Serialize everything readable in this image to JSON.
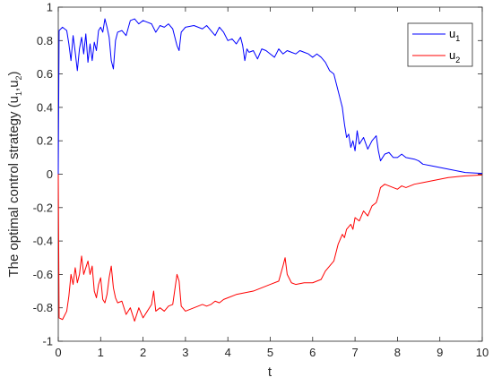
{
  "chart_data": {
    "type": "line",
    "xlabel": "t",
    "ylabel": {
      "text": "The optimal control strategy (u",
      "sub1": "1",
      "mid": ",u",
      "sub2": "2",
      "end": ")"
    },
    "xlim": [
      0,
      10
    ],
    "ylim": [
      -1,
      1
    ],
    "xticks": [
      "0",
      "1",
      "2",
      "3",
      "4",
      "5",
      "6",
      "7",
      "8",
      "9",
      "10"
    ],
    "yticks": [
      "-1",
      "-0.8",
      "-0.6",
      "-0.4",
      "-0.2",
      "0",
      "0.2",
      "0.4",
      "0.6",
      "0.8",
      "1"
    ],
    "grid": false,
    "legend_position": "top-right",
    "series": [
      {
        "name": "u",
        "sub": "1",
        "color": "#0000ff",
        "points": [
          [
            0,
            0
          ],
          [
            0.02,
            0.86
          ],
          [
            0.1,
            0.88
          ],
          [
            0.2,
            0.86
          ],
          [
            0.25,
            0.78
          ],
          [
            0.3,
            0.68
          ],
          [
            0.35,
            0.83
          ],
          [
            0.4,
            0.73
          ],
          [
            0.45,
            0.62
          ],
          [
            0.5,
            0.75
          ],
          [
            0.55,
            0.82
          ],
          [
            0.6,
            0.72
          ],
          [
            0.65,
            0.84
          ],
          [
            0.7,
            0.67
          ],
          [
            0.75,
            0.78
          ],
          [
            0.8,
            0.68
          ],
          [
            0.85,
            0.79
          ],
          [
            0.9,
            0.74
          ],
          [
            0.95,
            0.86
          ],
          [
            1.0,
            0.88
          ],
          [
            1.05,
            0.85
          ],
          [
            1.1,
            0.93
          ],
          [
            1.15,
            0.88
          ],
          [
            1.2,
            0.82
          ],
          [
            1.25,
            0.68
          ],
          [
            1.3,
            0.63
          ],
          [
            1.35,
            0.8
          ],
          [
            1.4,
            0.85
          ],
          [
            1.5,
            0.86
          ],
          [
            1.6,
            0.83
          ],
          [
            1.7,
            0.92
          ],
          [
            1.8,
            0.93
          ],
          [
            1.9,
            0.9
          ],
          [
            2.0,
            0.92
          ],
          [
            2.1,
            0.91
          ],
          [
            2.2,
            0.9
          ],
          [
            2.3,
            0.85
          ],
          [
            2.4,
            0.89
          ],
          [
            2.5,
            0.88
          ],
          [
            2.6,
            0.9
          ],
          [
            2.7,
            0.87
          ],
          [
            2.8,
            0.77
          ],
          [
            2.85,
            0.74
          ],
          [
            2.9,
            0.85
          ],
          [
            3.0,
            0.88
          ],
          [
            3.2,
            0.89
          ],
          [
            3.4,
            0.87
          ],
          [
            3.5,
            0.89
          ],
          [
            3.6,
            0.86
          ],
          [
            3.7,
            0.83
          ],
          [
            3.8,
            0.88
          ],
          [
            3.9,
            0.85
          ],
          [
            4.0,
            0.8
          ],
          [
            4.1,
            0.81
          ],
          [
            4.2,
            0.78
          ],
          [
            4.3,
            0.82
          ],
          [
            4.35,
            0.77
          ],
          [
            4.4,
            0.68
          ],
          [
            4.45,
            0.75
          ],
          [
            4.5,
            0.73
          ],
          [
            4.6,
            0.74
          ],
          [
            4.7,
            0.69
          ],
          [
            4.8,
            0.75
          ],
          [
            4.9,
            0.74
          ],
          [
            5.0,
            0.72
          ],
          [
            5.1,
            0.7
          ],
          [
            5.2,
            0.75
          ],
          [
            5.3,
            0.72
          ],
          [
            5.4,
            0.74
          ],
          [
            5.5,
            0.73
          ],
          [
            5.6,
            0.72
          ],
          [
            5.7,
            0.74
          ],
          [
            5.8,
            0.73
          ],
          [
            5.9,
            0.72
          ],
          [
            6.0,
            0.7
          ],
          [
            6.1,
            0.72
          ],
          [
            6.2,
            0.7
          ],
          [
            6.3,
            0.67
          ],
          [
            6.4,
            0.62
          ],
          [
            6.5,
            0.6
          ],
          [
            6.6,
            0.5
          ],
          [
            6.7,
            0.4
          ],
          [
            6.75,
            0.3
          ],
          [
            6.8,
            0.22
          ],
          [
            6.85,
            0.24
          ],
          [
            6.9,
            0.16
          ],
          [
            6.95,
            0.2
          ],
          [
            7.0,
            0.14
          ],
          [
            7.05,
            0.26
          ],
          [
            7.1,
            0.18
          ],
          [
            7.2,
            0.22
          ],
          [
            7.3,
            0.15
          ],
          [
            7.4,
            0.2
          ],
          [
            7.5,
            0.23
          ],
          [
            7.55,
            0.14
          ],
          [
            7.6,
            0.08
          ],
          [
            7.7,
            0.12
          ],
          [
            7.8,
            0.13
          ],
          [
            7.9,
            0.1
          ],
          [
            8.0,
            0.1
          ],
          [
            8.1,
            0.12
          ],
          [
            8.2,
            0.1
          ],
          [
            8.4,
            0.09
          ],
          [
            8.5,
            0.08
          ],
          [
            8.6,
            0.06
          ],
          [
            8.8,
            0.05
          ],
          [
            9.0,
            0.04
          ],
          [
            9.2,
            0.03
          ],
          [
            9.4,
            0.02
          ],
          [
            9.6,
            0.01
          ],
          [
            10,
            0.005
          ]
        ]
      },
      {
        "name": "u",
        "sub": "2",
        "color": "#ff0000",
        "points": [
          [
            0,
            0
          ],
          [
            0.02,
            -0.86
          ],
          [
            0.1,
            -0.87
          ],
          [
            0.2,
            -0.82
          ],
          [
            0.25,
            -0.73
          ],
          [
            0.3,
            -0.6
          ],
          [
            0.35,
            -0.66
          ],
          [
            0.4,
            -0.56
          ],
          [
            0.45,
            -0.65
          ],
          [
            0.5,
            -0.6
          ],
          [
            0.55,
            -0.49
          ],
          [
            0.6,
            -0.6
          ],
          [
            0.65,
            -0.56
          ],
          [
            0.7,
            -0.52
          ],
          [
            0.75,
            -0.6
          ],
          [
            0.8,
            -0.55
          ],
          [
            0.85,
            -0.7
          ],
          [
            0.9,
            -0.74
          ],
          [
            0.95,
            -0.66
          ],
          [
            1.0,
            -0.62
          ],
          [
            1.05,
            -0.75
          ],
          [
            1.1,
            -0.77
          ],
          [
            1.15,
            -0.72
          ],
          [
            1.2,
            -0.62
          ],
          [
            1.25,
            -0.55
          ],
          [
            1.3,
            -0.68
          ],
          [
            1.35,
            -0.74
          ],
          [
            1.4,
            -0.77
          ],
          [
            1.5,
            -0.76
          ],
          [
            1.6,
            -0.84
          ],
          [
            1.7,
            -0.8
          ],
          [
            1.8,
            -0.88
          ],
          [
            1.9,
            -0.8
          ],
          [
            2.0,
            -0.86
          ],
          [
            2.1,
            -0.82
          ],
          [
            2.2,
            -0.78
          ],
          [
            2.25,
            -0.7
          ],
          [
            2.3,
            -0.82
          ],
          [
            2.4,
            -0.8
          ],
          [
            2.5,
            -0.82
          ],
          [
            2.6,
            -0.79
          ],
          [
            2.7,
            -0.78
          ],
          [
            2.8,
            -0.6
          ],
          [
            2.85,
            -0.64
          ],
          [
            2.9,
            -0.79
          ],
          [
            3.0,
            -0.82
          ],
          [
            3.2,
            -0.8
          ],
          [
            3.4,
            -0.78
          ],
          [
            3.5,
            -0.79
          ],
          [
            3.6,
            -0.78
          ],
          [
            3.7,
            -0.76
          ],
          [
            3.8,
            -0.77
          ],
          [
            3.9,
            -0.75
          ],
          [
            4.0,
            -0.74
          ],
          [
            4.2,
            -0.72
          ],
          [
            4.4,
            -0.71
          ],
          [
            4.6,
            -0.7
          ],
          [
            4.8,
            -0.68
          ],
          [
            5.0,
            -0.66
          ],
          [
            5.2,
            -0.64
          ],
          [
            5.3,
            -0.55
          ],
          [
            5.35,
            -0.5
          ],
          [
            5.4,
            -0.6
          ],
          [
            5.5,
            -0.65
          ],
          [
            5.6,
            -0.66
          ],
          [
            5.8,
            -0.65
          ],
          [
            6.0,
            -0.65
          ],
          [
            6.2,
            -0.63
          ],
          [
            6.3,
            -0.58
          ],
          [
            6.4,
            -0.55
          ],
          [
            6.5,
            -0.52
          ],
          [
            6.6,
            -0.42
          ],
          [
            6.7,
            -0.36
          ],
          [
            6.75,
            -0.38
          ],
          [
            6.8,
            -0.33
          ],
          [
            6.9,
            -0.3
          ],
          [
            6.95,
            -0.33
          ],
          [
            7.0,
            -0.26
          ],
          [
            7.1,
            -0.28
          ],
          [
            7.2,
            -0.22
          ],
          [
            7.3,
            -0.25
          ],
          [
            7.4,
            -0.19
          ],
          [
            7.5,
            -0.17
          ],
          [
            7.55,
            -0.13
          ],
          [
            7.6,
            -0.08
          ],
          [
            7.7,
            -0.06
          ],
          [
            7.8,
            -0.07
          ],
          [
            7.9,
            -0.08
          ],
          [
            8.0,
            -0.09
          ],
          [
            8.1,
            -0.07
          ],
          [
            8.2,
            -0.08
          ],
          [
            8.4,
            -0.06
          ],
          [
            8.6,
            -0.05
          ],
          [
            8.8,
            -0.04
          ],
          [
            9.0,
            -0.03
          ],
          [
            9.2,
            -0.02
          ],
          [
            9.4,
            -0.015
          ],
          [
            9.6,
            -0.01
          ],
          [
            10,
            -0.005
          ]
        ]
      }
    ]
  }
}
